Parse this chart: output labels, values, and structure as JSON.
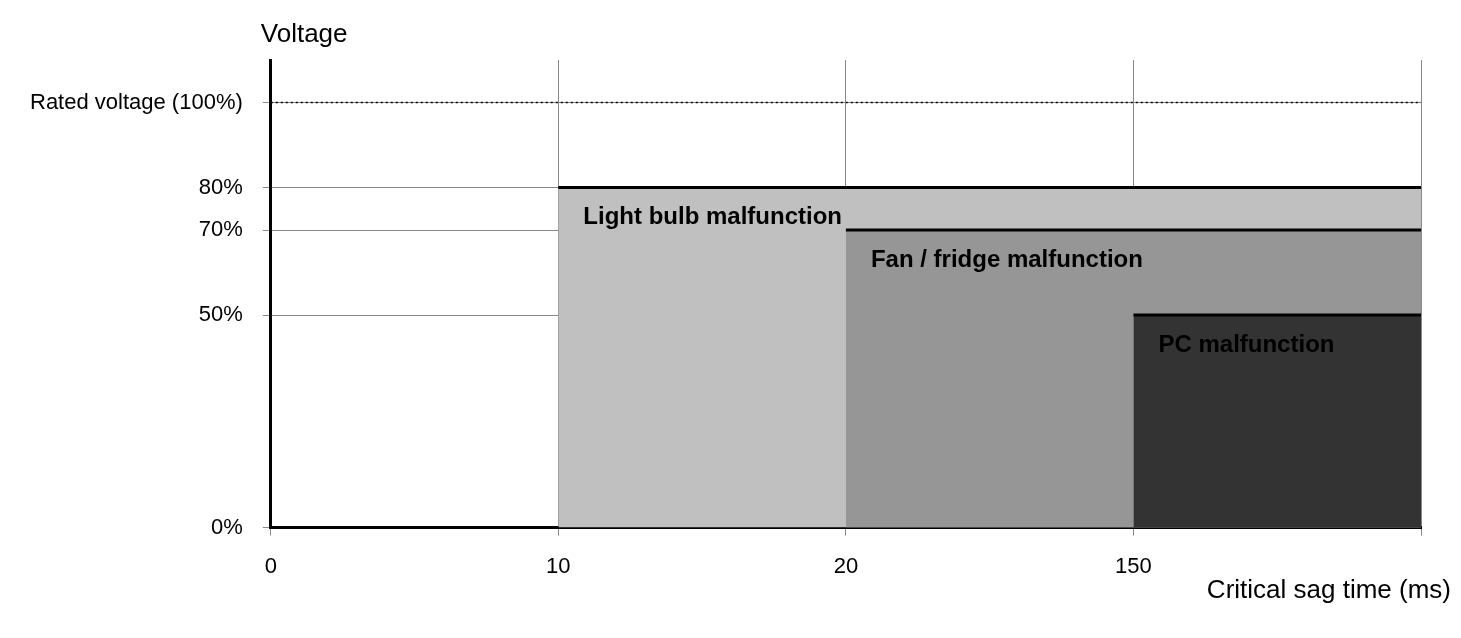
{
  "chart_data": {
    "type": "area",
    "xlabel": "Critical sag time (ms)",
    "ylabel": "Voltage",
    "categories": [
      "0",
      "10",
      "20",
      "150",
      null
    ],
    "series": [
      {
        "name": "Light bulb malfunction",
        "color": "#c0c0c0",
        "values": [
          null,
          80,
          80,
          80,
          80
        ]
      },
      {
        "name": "Fan / fridge malfunction",
        "color": "#969696",
        "values": [
          null,
          null,
          70,
          70,
          70
        ]
      },
      {
        "name": "PC malfunction",
        "color": "#333333",
        "values": [
          null,
          null,
          null,
          50,
          50
        ]
      }
    ],
    "ylim": [
      0,
      110
    ],
    "yticks": [
      {
        "value": 0,
        "label": "0%"
      },
      {
        "value": 50,
        "label": "50%"
      },
      {
        "value": 70,
        "label": "70%"
      },
      {
        "value": 80,
        "label": "80%"
      },
      {
        "value": 100,
        "label": "Rated voltage (100%)"
      }
    ],
    "ref_lines": [
      {
        "axis": "y",
        "value": 100,
        "line_style": "dotted",
        "color": "#000000"
      }
    ],
    "grid": true,
    "legend": false,
    "line_style": "solid",
    "marker": "none"
  }
}
